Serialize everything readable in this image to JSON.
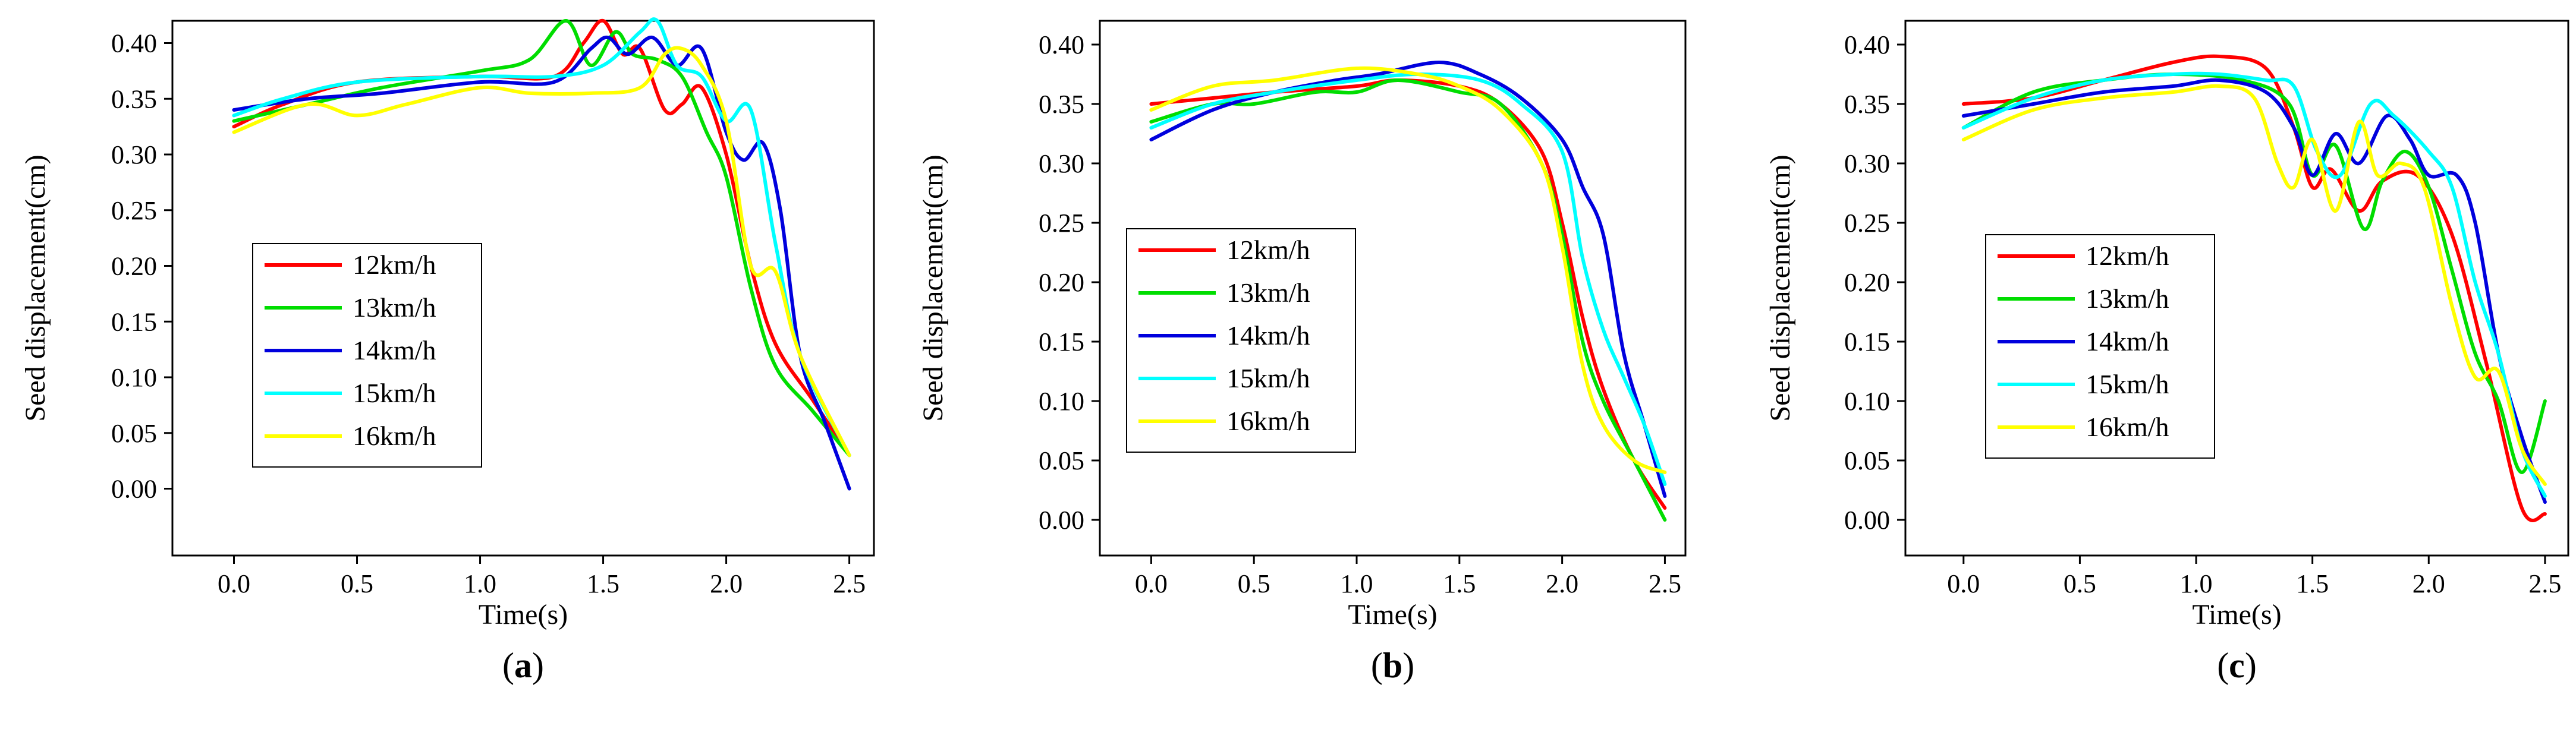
{
  "chart_data": [
    {
      "type": "line",
      "panel_label": "a",
      "xlabel": "Time(s)",
      "ylabel": "Seed displacement(cm)",
      "xlim": [
        -0.25,
        2.6
      ],
      "ylim": [
        -0.06,
        0.42
      ],
      "x_ticks": [
        "0.0",
        "0.5",
        "1.0",
        "1.5",
        "2.0",
        "2.5"
      ],
      "y_ticks": [
        "0.00",
        "0.05",
        "0.10",
        "0.15",
        "0.20",
        "0.25",
        "0.30",
        "0.35",
        "0.40"
      ],
      "legend_position": "center-left",
      "series": [
        {
          "name": "12km/h",
          "color": "#ff0000",
          "x": [
            0,
            0.2,
            0.5,
            1.0,
            1.3,
            1.42,
            1.5,
            1.58,
            1.65,
            1.75,
            1.82,
            1.9,
            2.0,
            2.1,
            2.2,
            2.35,
            2.5
          ],
          "y": [
            0.325,
            0.345,
            0.365,
            0.37,
            0.37,
            0.4,
            0.42,
            0.39,
            0.395,
            0.34,
            0.345,
            0.36,
            0.3,
            0.2,
            0.13,
            0.08,
            0.03
          ]
        },
        {
          "name": "13km/h",
          "color": "#00dd00",
          "x": [
            0,
            0.3,
            0.6,
            1.0,
            1.2,
            1.35,
            1.45,
            1.55,
            1.62,
            1.72,
            1.82,
            1.92,
            2.0,
            2.1,
            2.2,
            2.35,
            2.5
          ],
          "y": [
            0.33,
            0.345,
            0.36,
            0.375,
            0.385,
            0.42,
            0.38,
            0.41,
            0.39,
            0.385,
            0.37,
            0.32,
            0.28,
            0.18,
            0.11,
            0.07,
            0.03
          ]
        },
        {
          "name": "14km/h",
          "color": "#0000dd",
          "x": [
            0,
            0.3,
            0.6,
            1.0,
            1.3,
            1.45,
            1.52,
            1.6,
            1.7,
            1.8,
            1.9,
            2.0,
            2.07,
            2.15,
            2.22,
            2.3,
            2.4,
            2.5
          ],
          "y": [
            0.34,
            0.35,
            0.355,
            0.365,
            0.365,
            0.395,
            0.405,
            0.39,
            0.405,
            0.38,
            0.395,
            0.32,
            0.295,
            0.31,
            0.25,
            0.12,
            0.06,
            0.0
          ]
        },
        {
          "name": "15km/h",
          "color": "#00ffff",
          "x": [
            0,
            0.2,
            0.5,
            1.0,
            1.3,
            1.5,
            1.65,
            1.72,
            1.8,
            1.9,
            2.0,
            2.1,
            2.2,
            2.3,
            2.5
          ],
          "y": [
            0.335,
            0.35,
            0.365,
            0.37,
            0.37,
            0.38,
            0.41,
            0.42,
            0.38,
            0.37,
            0.33,
            0.34,
            0.22,
            0.12,
            0.03
          ]
        },
        {
          "name": "16km/h",
          "color": "#ffff00",
          "x": [
            0,
            0.3,
            0.5,
            0.7,
            1.0,
            1.2,
            1.45,
            1.65,
            1.75,
            1.82,
            1.9,
            2.0,
            2.1,
            2.2,
            2.3,
            2.5
          ],
          "y": [
            0.32,
            0.345,
            0.335,
            0.345,
            0.36,
            0.355,
            0.355,
            0.36,
            0.39,
            0.395,
            0.38,
            0.33,
            0.2,
            0.195,
            0.12,
            0.03
          ]
        }
      ]
    },
    {
      "type": "line",
      "panel_label": "b",
      "xlabel": "Time(s)",
      "ylabel": "Seed displacement(cm)",
      "xlim": [
        -0.25,
        2.6
      ],
      "ylim": [
        -0.03,
        0.42
      ],
      "x_ticks": [
        "0.0",
        "0.5",
        "1.0",
        "1.5",
        "2.0",
        "2.5"
      ],
      "y_ticks": [
        "0.00",
        "0.05",
        "0.10",
        "0.15",
        "0.20",
        "0.25",
        "0.30",
        "0.35",
        "0.40"
      ],
      "legend_position": "center-left",
      "series": [
        {
          "name": "12km/h",
          "color": "#ff0000",
          "x": [
            0,
            0.3,
            0.6,
            1.0,
            1.2,
            1.5,
            1.7,
            1.9,
            2.0,
            2.1,
            2.2,
            2.35,
            2.5
          ],
          "y": [
            0.35,
            0.355,
            0.36,
            0.365,
            0.37,
            0.365,
            0.35,
            0.31,
            0.25,
            0.17,
            0.11,
            0.05,
            0.01
          ]
        },
        {
          "name": "13km/h",
          "color": "#00dd00",
          "x": [
            0,
            0.3,
            0.5,
            0.8,
            1.0,
            1.2,
            1.5,
            1.7,
            1.9,
            2.0,
            2.1,
            2.2,
            2.35,
            2.5
          ],
          "y": [
            0.335,
            0.35,
            0.35,
            0.36,
            0.36,
            0.37,
            0.36,
            0.35,
            0.3,
            0.24,
            0.15,
            0.1,
            0.05,
            0.0
          ]
        },
        {
          "name": "14km/h",
          "color": "#0000dd",
          "x": [
            0,
            0.3,
            0.6,
            0.9,
            1.1,
            1.4,
            1.6,
            1.8,
            2.0,
            2.1,
            2.2,
            2.3,
            2.4,
            2.5
          ],
          "y": [
            0.32,
            0.345,
            0.36,
            0.37,
            0.375,
            0.385,
            0.375,
            0.355,
            0.32,
            0.28,
            0.24,
            0.14,
            0.08,
            0.02
          ]
        },
        {
          "name": "15km/h",
          "color": "#00ffff",
          "x": [
            0,
            0.3,
            0.6,
            1.0,
            1.3,
            1.6,
            1.8,
            2.0,
            2.1,
            2.2,
            2.3,
            2.4,
            2.5
          ],
          "y": [
            0.33,
            0.35,
            0.36,
            0.37,
            0.375,
            0.37,
            0.35,
            0.31,
            0.22,
            0.16,
            0.12,
            0.08,
            0.03
          ]
        },
        {
          "name": "16km/h",
          "color": "#ffff00",
          "x": [
            0,
            0.3,
            0.6,
            1.0,
            1.3,
            1.5,
            1.7,
            1.9,
            2.0,
            2.1,
            2.2,
            2.35,
            2.5
          ],
          "y": [
            0.345,
            0.365,
            0.37,
            0.38,
            0.375,
            0.365,
            0.345,
            0.3,
            0.23,
            0.13,
            0.08,
            0.05,
            0.04
          ]
        }
      ]
    },
    {
      "type": "line",
      "panel_label": "c",
      "xlabel": "Time(s)",
      "ylabel": "Seed displacement(cm)",
      "xlim": [
        -0.25,
        2.6
      ],
      "ylim": [
        -0.03,
        0.42
      ],
      "x_ticks": [
        "0.0",
        "0.5",
        "1.0",
        "1.5",
        "2.0",
        "2.5"
      ],
      "y_ticks": [
        "0.00",
        "0.05",
        "0.10",
        "0.15",
        "0.20",
        "0.25",
        "0.30",
        "0.35",
        "0.40"
      ],
      "legend_position": "bottom-left",
      "series": [
        {
          "name": "12km/h",
          "color": "#ff0000",
          "x": [
            0,
            0.3,
            0.6,
            0.9,
            1.1,
            1.3,
            1.42,
            1.5,
            1.58,
            1.7,
            1.8,
            1.95,
            2.1,
            2.25,
            2.4,
            2.5
          ],
          "y": [
            0.35,
            0.355,
            0.37,
            0.385,
            0.39,
            0.38,
            0.33,
            0.28,
            0.295,
            0.26,
            0.285,
            0.29,
            0.24,
            0.13,
            0.01,
            0.005
          ]
        },
        {
          "name": "13km/h",
          "color": "#00dd00",
          "x": [
            0,
            0.3,
            0.6,
            0.9,
            1.2,
            1.4,
            1.5,
            1.6,
            1.72,
            1.8,
            1.9,
            2.0,
            2.1,
            2.2,
            2.3,
            2.4,
            2.5
          ],
          "y": [
            0.33,
            0.36,
            0.37,
            0.375,
            0.37,
            0.35,
            0.29,
            0.315,
            0.245,
            0.285,
            0.31,
            0.28,
            0.21,
            0.14,
            0.1,
            0.04,
            0.1
          ]
        },
        {
          "name": "14km/h",
          "color": "#0000dd",
          "x": [
            0,
            0.3,
            0.6,
            0.9,
            1.1,
            1.3,
            1.42,
            1.5,
            1.6,
            1.7,
            1.82,
            1.92,
            2.0,
            2.12,
            2.2,
            2.3,
            2.4,
            2.5
          ],
          "y": [
            0.34,
            0.35,
            0.36,
            0.365,
            0.37,
            0.36,
            0.33,
            0.29,
            0.325,
            0.3,
            0.34,
            0.32,
            0.29,
            0.29,
            0.25,
            0.14,
            0.07,
            0.015
          ]
        },
        {
          "name": "15km/h",
          "color": "#00ffff",
          "x": [
            0,
            0.3,
            0.6,
            0.9,
            1.1,
            1.3,
            1.42,
            1.52,
            1.62,
            1.75,
            1.85,
            2.0,
            2.1,
            2.2,
            2.3,
            2.4,
            2.5
          ],
          "y": [
            0.33,
            0.355,
            0.37,
            0.375,
            0.375,
            0.37,
            0.365,
            0.31,
            0.29,
            0.35,
            0.34,
            0.31,
            0.28,
            0.2,
            0.14,
            0.06,
            0.02
          ]
        },
        {
          "name": "16km/h",
          "color": "#ffff00",
          "x": [
            0,
            0.3,
            0.6,
            0.9,
            1.1,
            1.25,
            1.35,
            1.42,
            1.5,
            1.6,
            1.7,
            1.78,
            1.88,
            1.98,
            2.1,
            2.2,
            2.3,
            2.4,
            2.5
          ],
          "y": [
            0.32,
            0.345,
            0.355,
            0.36,
            0.365,
            0.355,
            0.3,
            0.28,
            0.32,
            0.26,
            0.335,
            0.29,
            0.3,
            0.28,
            0.18,
            0.12,
            0.125,
            0.06,
            0.03
          ]
        }
      ]
    }
  ]
}
